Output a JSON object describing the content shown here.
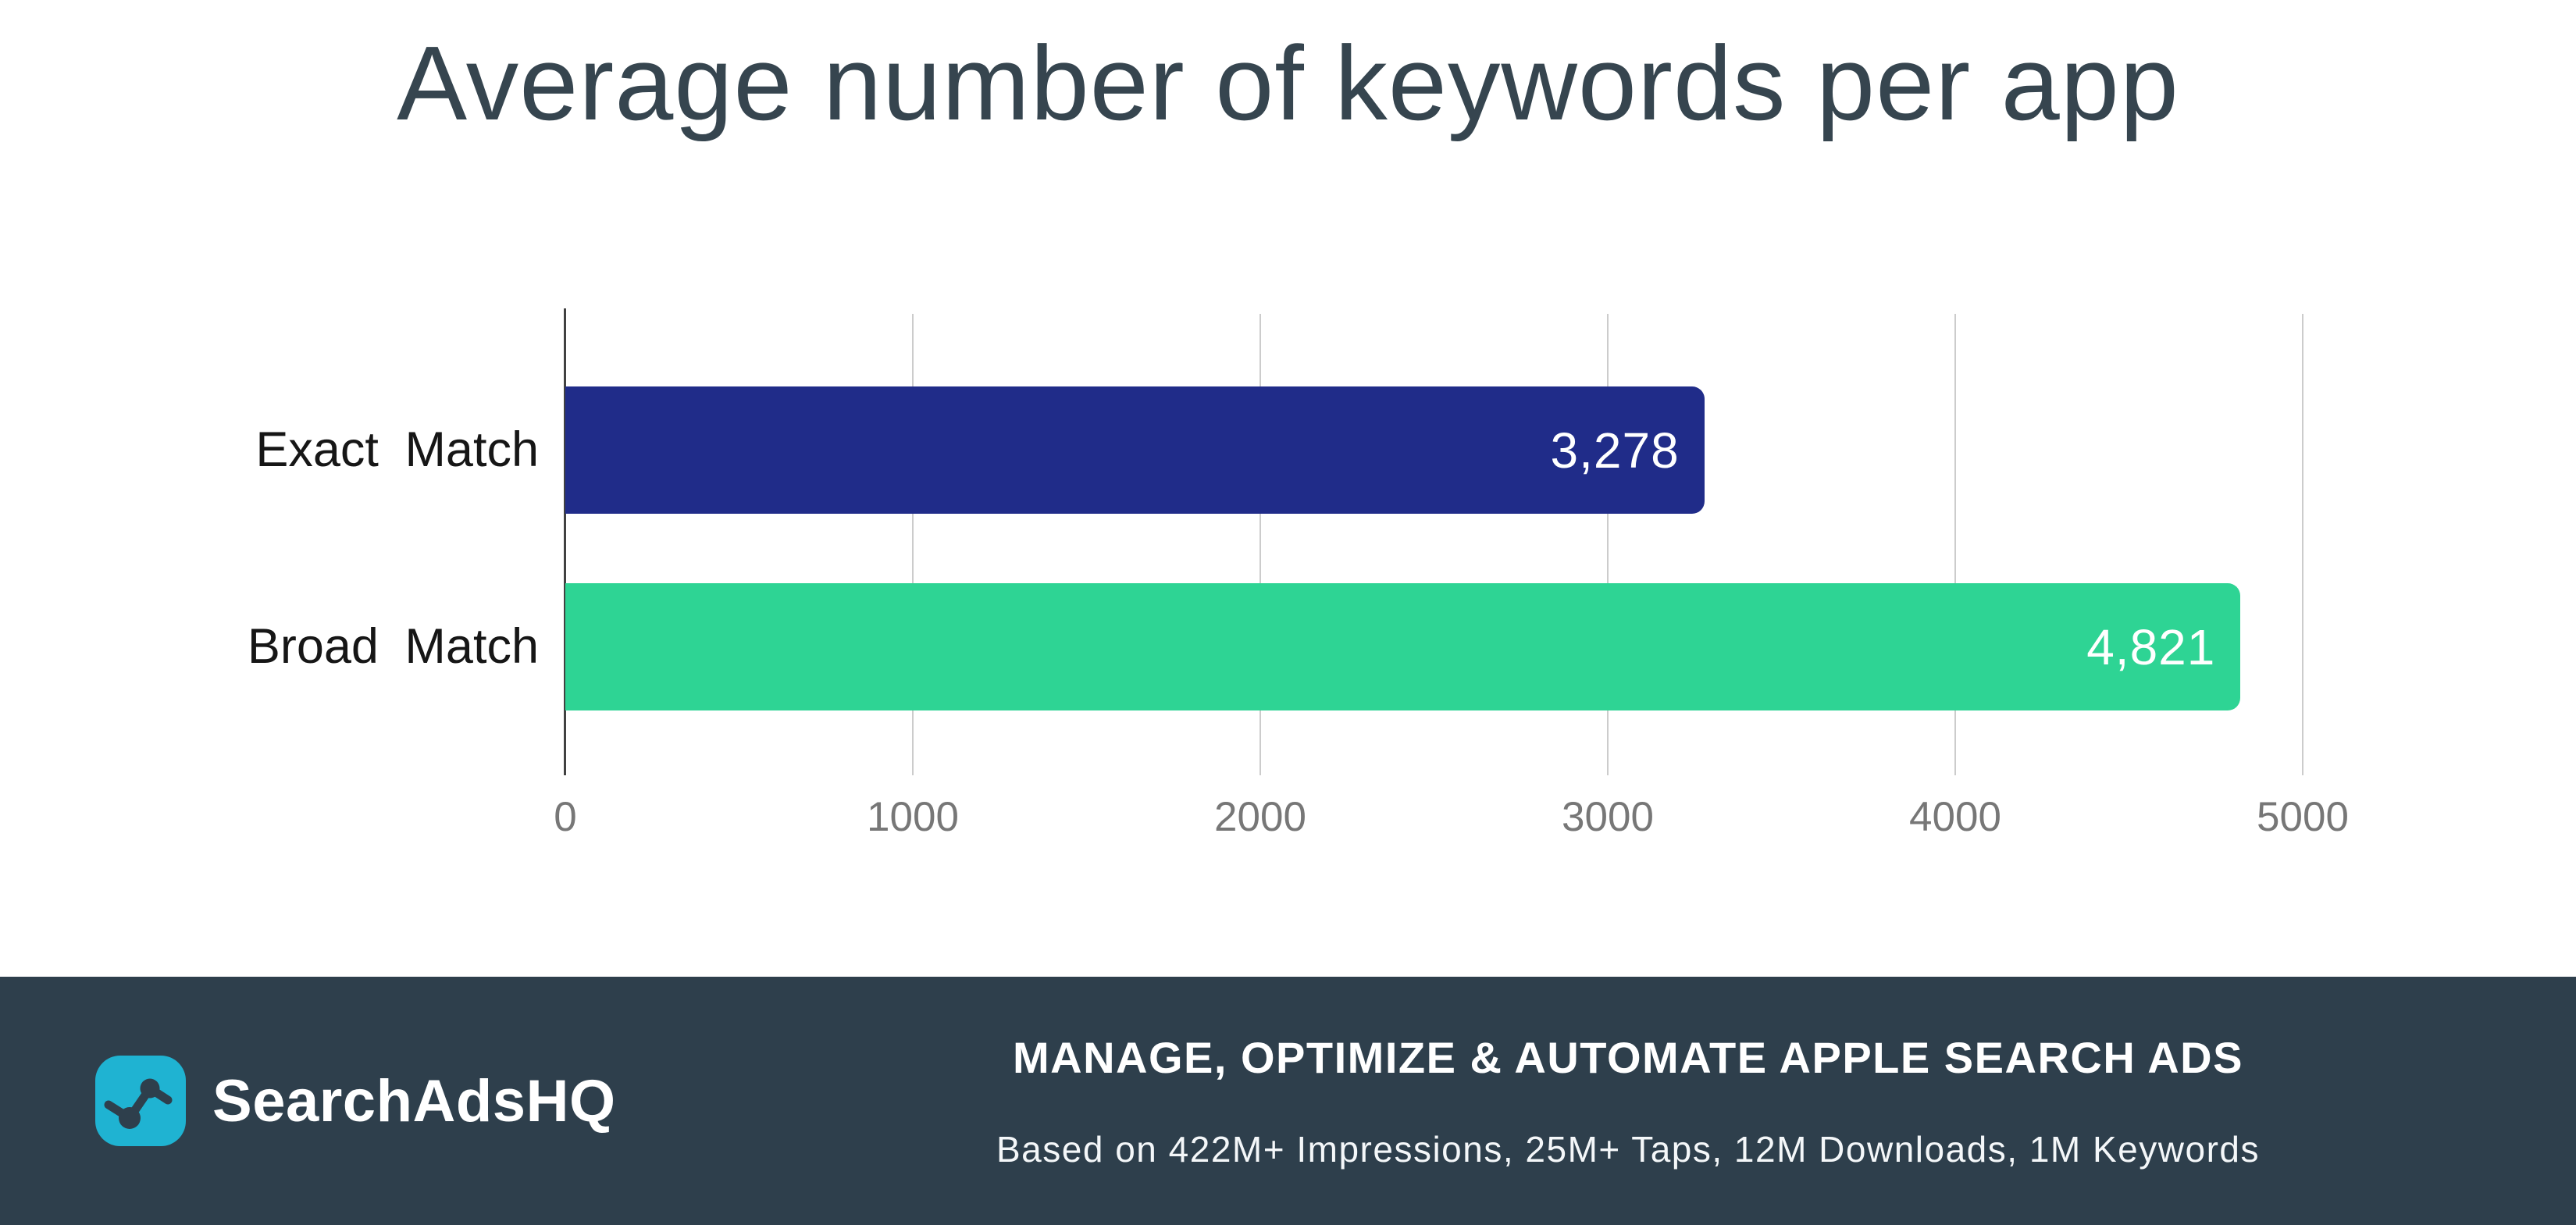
{
  "title": "Average number of keywords per app",
  "chart_data": {
    "type": "bar",
    "orientation": "horizontal",
    "title": "Average number of keywords per app",
    "categories": [
      "Exact Match",
      "Broad Match"
    ],
    "values": [
      3278,
      4821
    ],
    "value_labels": [
      "3,278",
      "4,821"
    ],
    "bar_colors": [
      "#202c89",
      "#2ed494"
    ],
    "x_ticks": [
      0,
      1000,
      2000,
      3000,
      4000,
      5000
    ],
    "x_tick_labels": [
      "0",
      "1000",
      "2000",
      "3000",
      "4000",
      "5000"
    ],
    "xlim": [
      0,
      5000
    ],
    "grid": true,
    "legend": "none",
    "value_label_color": "#ffffff"
  },
  "footer": {
    "brand": "SearchAdsHQ",
    "logo_icon": "line-chart-icon",
    "logo_color": "#1fb3d2",
    "headline": "MANAGE, OPTIMIZE & AUTOMATE APPLE SEARCH ADS",
    "subline": "Based on 422M+ Impressions, 25M+ Taps, 12M Downloads, 1M Keywords",
    "background_color": "#2e3f4c"
  },
  "colors": {
    "title_text": "#36454f",
    "axis_line": "#424242",
    "gridline": "#cccccc",
    "tick_text": "#777777",
    "category_text": "#161616"
  }
}
